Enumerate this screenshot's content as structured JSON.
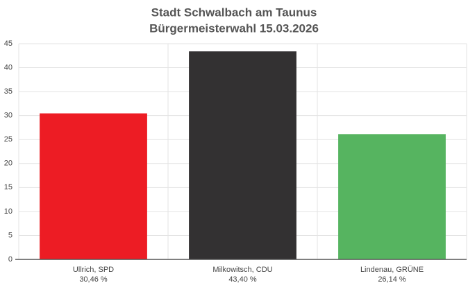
{
  "chart_data": {
    "type": "bar",
    "title": "Stadt Schwalbach am Taunus",
    "subtitle": "Bürgermeisterwahl 15.03.2026",
    "categories": [
      "Ullrich, SPD",
      "Milkowitsch, CDU",
      "Lindenau, GRÜNE"
    ],
    "values": [
      30.46,
      43.4,
      26.14
    ],
    "value_labels": [
      "30,46 %",
      "43,40 %",
      "26,14 %"
    ],
    "colors": [
      "#ed1c24",
      "#333132",
      "#56b460"
    ],
    "ylim": [
      0,
      45
    ],
    "yticks": [
      0,
      5,
      10,
      15,
      20,
      25,
      30,
      35,
      40,
      45
    ],
    "grid": true
  }
}
